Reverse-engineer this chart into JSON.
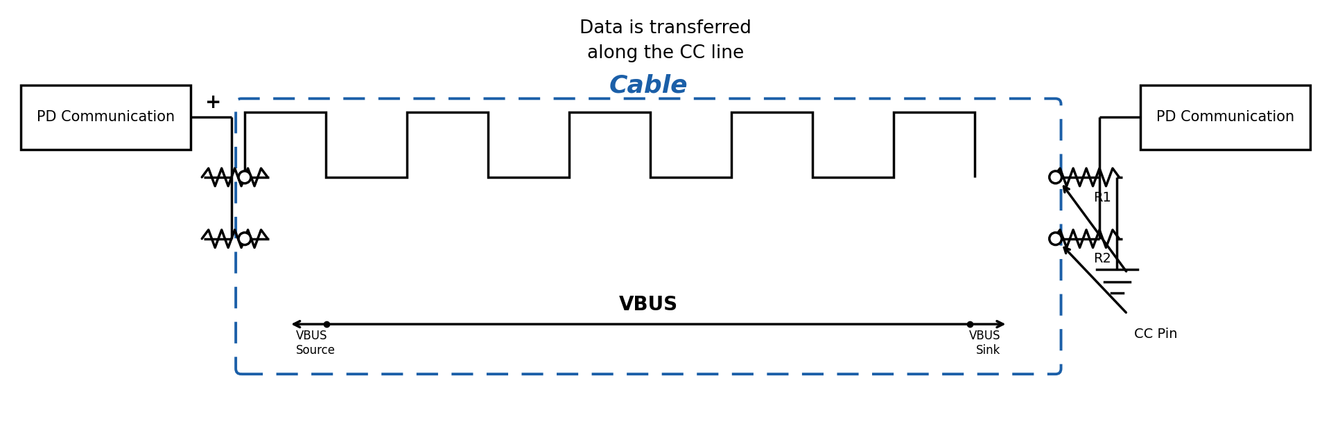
{
  "title_annotation": "Data is transferred\nalong the CC line",
  "cable_label": "Cable",
  "pd_comm_label": "PD Communication",
  "vbus_label": "VBUS",
  "vbus_source_label": "VBUS\nSource",
  "vbus_sink_label": "VBUS\nSink",
  "r1_label": "R1",
  "r2_label": "R2",
  "cc_pin_label": "CC Pin",
  "plus_label": "+",
  "line_color": "#000000",
  "cable_box_color": "#1B5FA8",
  "text_color": "#000000",
  "cable_label_color": "#1B5FA8",
  "bg_color": "#ffffff",
  "lw": 2.5
}
